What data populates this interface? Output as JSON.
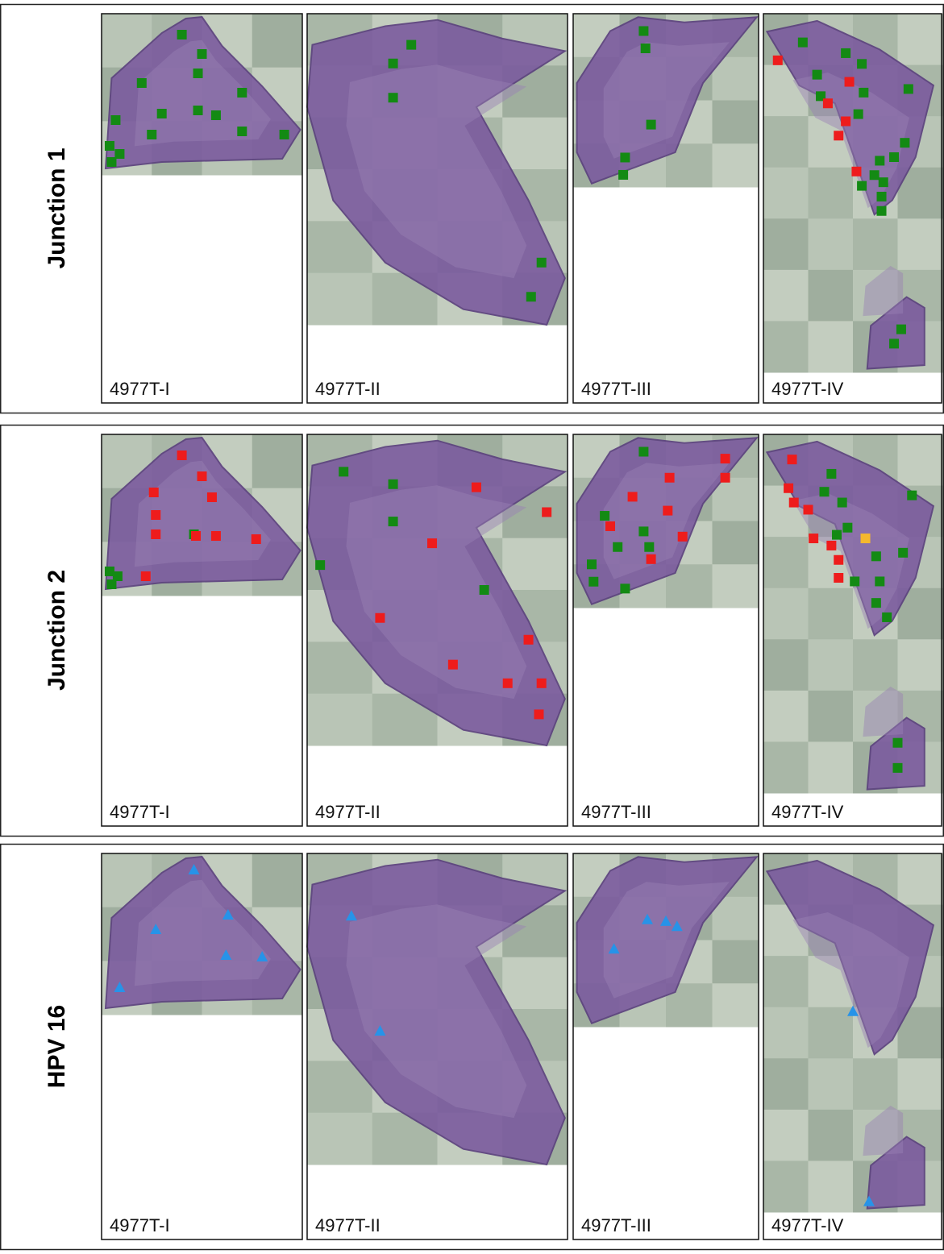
{
  "rows": [
    {
      "label": "Junction 1",
      "panels": [
        "4977T-I",
        "4977T-II",
        "4977T-III",
        "4977T-IV"
      ]
    },
    {
      "label": "Junction 2",
      "panels": [
        "4977T-I",
        "4977T-II",
        "4977T-III",
        "4977T-IV"
      ]
    },
    {
      "label": "HPV 16",
      "panels": [
        "4977T-I",
        "4977T-II",
        "4977T-III",
        "4977T-IV"
      ]
    }
  ]
}
